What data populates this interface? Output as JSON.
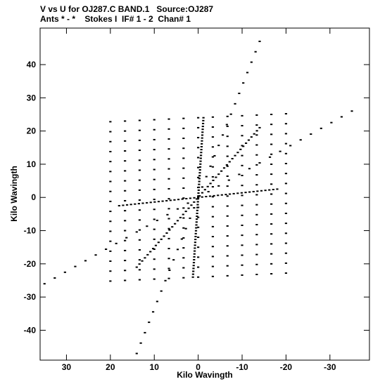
{
  "header": {
    "line1": "V vs U for OJ287.C BAND.1   Source:OJ287",
    "line2": "Ants * - *    Stokes I  IF# 1 - 2  Chan# 1"
  },
  "chart_data": {
    "type": "scatter",
    "xlabel": "Kilo Wavingth",
    "ylabel": "Kilo Wavingth",
    "xlim": [
      36,
      -39
    ],
    "ylim": [
      -49,
      51
    ],
    "x_ticks": [
      30,
      20,
      10,
      0,
      -10,
      -20,
      -30
    ],
    "y_ticks": [
      40,
      30,
      20,
      10,
      0,
      -10,
      -20,
      -30,
      -40
    ],
    "grid": false,
    "marker": "short dash",
    "tracks": [
      {
        "note": "horizontal-ish arm",
        "x0": -35,
        "x1": 35,
        "y0": 26,
        "y1": -26,
        "n": 30
      },
      {
        "note": "steep arm",
        "x0": -14,
        "x1": 14,
        "y0": 47,
        "y1": -47,
        "n": 30
      },
      {
        "note": "near-horizontal through center",
        "x0": -18,
        "x1": 18,
        "y0": 2.5,
        "y1": -2.5,
        "n": 40
      },
      {
        "note": "near-vertical through center",
        "x0": -1.2,
        "x1": 1.2,
        "y0": 24,
        "y1": -24,
        "n": 55
      },
      {
        "note": "diagonal NE-SW",
        "x0": -14,
        "x1": 14,
        "y0": 21,
        "y1": -21,
        "n": 45
      }
    ],
    "grid_block": {
      "x_min": -20,
      "x_max": 20,
      "y_min": -24,
      "y_max": 24,
      "nx": 12,
      "ny": 16,
      "skew": 0.06
    }
  }
}
